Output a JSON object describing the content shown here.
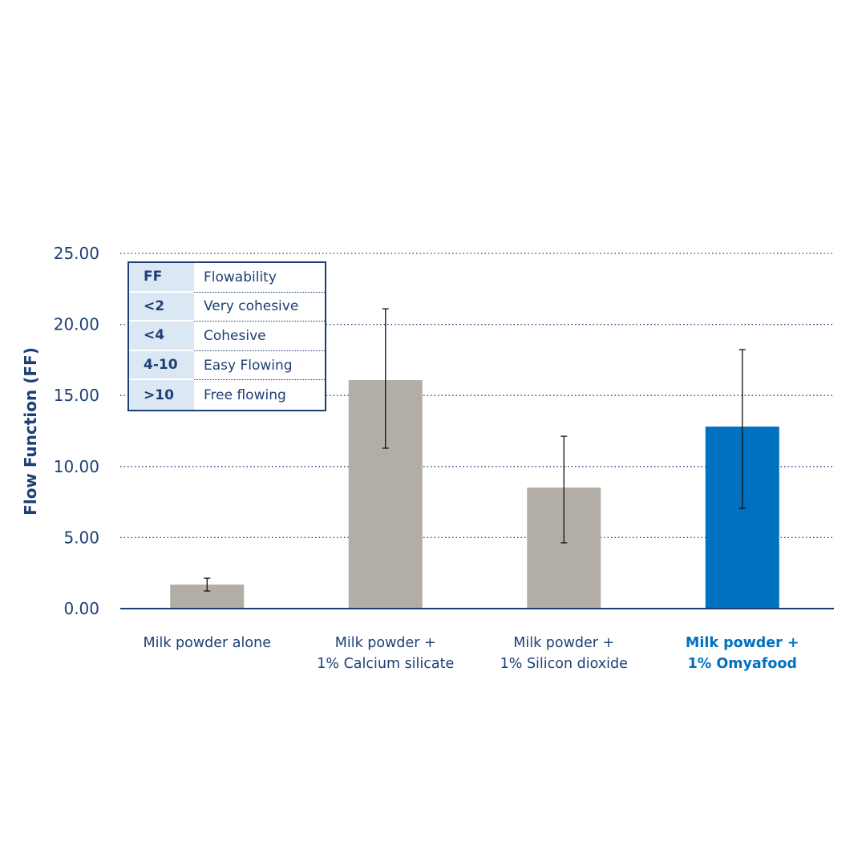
{
  "chart_data": {
    "type": "bar",
    "title": "",
    "xlabel": "",
    "ylabel": "Flow Function (FF)",
    "ylim": [
      0,
      25
    ],
    "yticks": [
      "0.00",
      "5.00",
      "10.00",
      "15.00",
      "20.00",
      "25.00"
    ],
    "grid": true,
    "categories": [
      [
        "Milk powder alone"
      ],
      [
        "Milk powder +",
        "1% Calcium silicate"
      ],
      [
        "Milk powder +",
        "1% Silicon dioxide"
      ],
      [
        "Milk powder +",
        "1% Omyafood"
      ]
    ],
    "values": [
      1.69,
      16.08,
      8.52,
      12.81
    ],
    "error_low": [
      1.24,
      11.29,
      4.63,
      7.05
    ],
    "error_high": [
      2.14,
      21.1,
      12.13,
      18.23
    ],
    "colors": [
      "#b3ada7",
      "#b3ada7",
      "#b3ada7",
      "#0070c0"
    ],
    "label_colors": [
      "#1d3f75",
      "#1d3f75",
      "#1d3f75",
      "#0070c0"
    ],
    "legend_table": {
      "position": "top-left",
      "rows": [
        {
          "key": "FF",
          "value": "Flowability"
        },
        {
          "key": "<2",
          "value": "Very cohesive"
        },
        {
          "key": "<4",
          "value": "Cohesive"
        },
        {
          "key": "4-10",
          "value": "Easy Flowing"
        },
        {
          "key": ">10",
          "value": "Free flowing"
        }
      ]
    }
  }
}
